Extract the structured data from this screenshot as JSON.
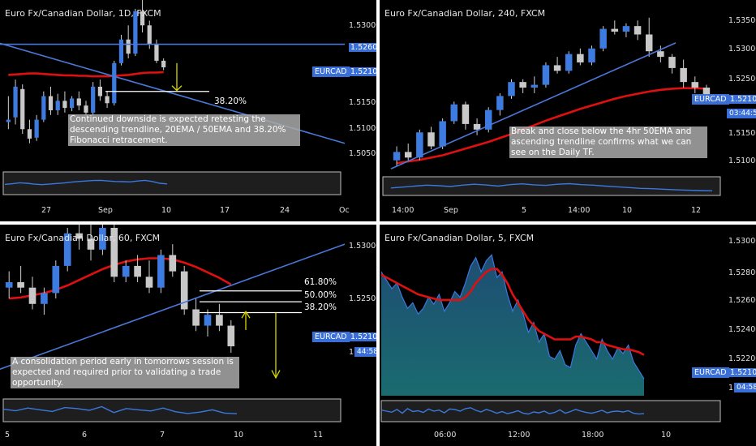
{
  "chart_data": [
    {
      "type": "candlestick",
      "title": "Euro Fx/Canadian Dollar, 1D, FXCM",
      "price_axis": [
        "1.53000",
        "1.52600",
        "1.52108",
        "1.51500",
        "1.51000",
        "1.50500"
      ],
      "highlight_price": "1.52600",
      "last_price": "1.52108",
      "symbol_tag": "EURCAD",
      "x_labels": [
        "27",
        "Sep",
        "10",
        "17",
        "24",
        "Oc"
      ],
      "fib_levels": [
        {
          "label": "38.20%",
          "price": 1.516
        }
      ],
      "annotation": "Continued downside is expected retesting the descending trendline, 20EMA / 50EMA and 38.20% Fibonacci retracement.",
      "ylim": [
        1.501,
        1.534
      ],
      "candles": [
        [
          1.5095,
          1.515,
          1.508,
          1.51
        ],
        [
          1.5105,
          1.5185,
          1.509,
          1.517
        ],
        [
          1.5165,
          1.5175,
          1.507,
          1.508
        ],
        [
          1.508,
          1.51,
          1.505,
          1.506
        ],
        [
          1.5062,
          1.511,
          1.5055,
          1.51
        ],
        [
          1.51,
          1.516,
          1.5095,
          1.515
        ],
        [
          1.515,
          1.517,
          1.511,
          1.512
        ],
        [
          1.512,
          1.5155,
          1.511,
          1.514
        ],
        [
          1.514,
          1.516,
          1.5115,
          1.5125
        ],
        [
          1.5125,
          1.515,
          1.5118,
          1.5145
        ],
        [
          1.5145,
          1.516,
          1.512,
          1.513
        ],
        [
          1.513,
          1.514,
          1.511,
          1.5115
        ],
        [
          1.5115,
          1.518,
          1.511,
          1.517
        ],
        [
          1.517,
          1.5185,
          1.514,
          1.515
        ],
        [
          1.515,
          1.516,
          1.5125,
          1.5135
        ],
        [
          1.5135,
          1.5225,
          1.513,
          1.522
        ],
        [
          1.522,
          1.528,
          1.5215,
          1.527
        ],
        [
          1.527,
          1.53,
          1.523,
          1.524
        ],
        [
          1.524,
          1.5335,
          1.5235,
          1.533
        ],
        [
          1.533,
          1.536,
          1.5285,
          1.53
        ],
        [
          1.53,
          1.531,
          1.525,
          1.526
        ],
        [
          1.526,
          1.527,
          1.522,
          1.5225
        ],
        [
          1.5225,
          1.523,
          1.5205,
          1.5211
        ]
      ],
      "ema50": [
        1.5195,
        1.5196,
        1.5197,
        1.5198,
        1.5198,
        1.5197,
        1.5196,
        1.5195,
        1.5194,
        1.5194,
        1.5193,
        1.5193,
        1.5192,
        1.5192,
        1.5192,
        1.5193,
        1.5194,
        1.5195,
        1.5197,
        1.5199,
        1.52,
        1.52,
        1.5201
      ],
      "oscillator": [
        0.45,
        0.48,
        0.52,
        0.5,
        0.46,
        0.44,
        0.46,
        0.49,
        0.51,
        0.55,
        0.58,
        0.6,
        0.62,
        0.63,
        0.6,
        0.58,
        0.57,
        0.56,
        0.6,
        0.63,
        0.58,
        0.5,
        0.47
      ]
    },
    {
      "type": "candlestick",
      "title": "Euro Fx/Canadian Dollar, 240, FXCM",
      "price_axis": [
        "1.53500",
        "1.53000",
        "1.52500",
        "1.52108",
        "1.51500",
        "1.51000"
      ],
      "last_price": "1.52108",
      "symbol_tag": "EURCAD",
      "countdown": "03:44:58",
      "x_labels": [
        "14:00",
        "Sep",
        "5",
        "14:00",
        "10",
        "12"
      ],
      "annotation": "Break and close below the 4hr 50EMA and ascending trendline confirms what we can see on the Daily TF.",
      "ylim": [
        1.507,
        1.537
      ],
      "candles": [
        [
          1.5095,
          1.512,
          1.5085,
          1.511
        ],
        [
          1.511,
          1.5125,
          1.5095,
          1.51
        ],
        [
          1.51,
          1.515,
          1.5095,
          1.5145
        ],
        [
          1.5145,
          1.5155,
          1.5115,
          1.512
        ],
        [
          1.512,
          1.517,
          1.5115,
          1.5165
        ],
        [
          1.5165,
          1.52,
          1.516,
          1.5195
        ],
        [
          1.5195,
          1.52,
          1.515,
          1.516
        ],
        [
          1.516,
          1.517,
          1.514,
          1.515
        ],
        [
          1.515,
          1.519,
          1.5145,
          1.5185
        ],
        [
          1.5185,
          1.5215,
          1.5175,
          1.521
        ],
        [
          1.521,
          1.524,
          1.5205,
          1.5235
        ],
        [
          1.5235,
          1.524,
          1.5215,
          1.5225
        ],
        [
          1.5225,
          1.5245,
          1.5215,
          1.523
        ],
        [
          1.523,
          1.527,
          1.5225,
          1.5265
        ],
        [
          1.5265,
          1.528,
          1.525,
          1.5255
        ],
        [
          1.5255,
          1.529,
          1.525,
          1.5285
        ],
        [
          1.5285,
          1.5295,
          1.5265,
          1.527
        ],
        [
          1.527,
          1.53,
          1.5265,
          1.5295
        ],
        [
          1.5295,
          1.5335,
          1.529,
          1.533
        ],
        [
          1.533,
          1.5345,
          1.532,
          1.5325
        ],
        [
          1.5325,
          1.534,
          1.5315,
          1.5335
        ],
        [
          1.5335,
          1.5345,
          1.531,
          1.532
        ],
        [
          1.532,
          1.535,
          1.528,
          1.529
        ],
        [
          1.529,
          1.53,
          1.527,
          1.528
        ],
        [
          1.528,
          1.5285,
          1.525,
          1.526
        ],
        [
          1.526,
          1.5275,
          1.5225,
          1.5235
        ],
        [
          1.5235,
          1.5245,
          1.5215,
          1.5225
        ],
        [
          1.5225,
          1.523,
          1.5195,
          1.5211
        ]
      ],
      "ema50": [
        1.509,
        1.5093,
        1.5096,
        1.51,
        1.5104,
        1.511,
        1.5116,
        1.5122,
        1.5128,
        1.5135,
        1.5142,
        1.515,
        1.5158,
        1.5166,
        1.5173,
        1.518,
        1.5187,
        1.5193,
        1.5199,
        1.5205,
        1.521,
        1.5214,
        1.5218,
        1.5221,
        1.5223,
        1.5224,
        1.5224,
        1.5223
      ],
      "oscillator": [
        0.4,
        0.45,
        0.5,
        0.55,
        0.52,
        0.48,
        0.55,
        0.6,
        0.56,
        0.5,
        0.58,
        0.62,
        0.57,
        0.54,
        0.6,
        0.63,
        0.58,
        0.55,
        0.5,
        0.46,
        0.42,
        0.38,
        0.36,
        0.33,
        0.3,
        0.28,
        0.26,
        0.25
      ]
    },
    {
      "type": "candlestick",
      "title": "Euro Fx/Canadian Dollar, 60, FXCM",
      "price_axis": [
        "1.53000",
        "1.52500",
        "1.52108"
      ],
      "last_price": "1.52108",
      "symbol_tag": "EURCAD",
      "countdown": "44:58",
      "countdown_prefix": "1",
      "x_labels": [
        "5",
        "6",
        "7",
        "10",
        "11"
      ],
      "fib_levels": [
        {
          "label": "61.80%",
          "price": 1.5262
        },
        {
          "label": "50.00%",
          "price": 1.5252
        },
        {
          "label": "38.20%",
          "price": 1.5242
        }
      ],
      "annotation": "A consolidation period early in tomorrows session is expected and required prior to validating a trade opportunity.",
      "ylim": [
        1.517,
        1.532
      ],
      "candles": [
        [
          1.5265,
          1.528,
          1.5255,
          1.527
        ],
        [
          1.527,
          1.5285,
          1.526,
          1.5265
        ],
        [
          1.5265,
          1.5275,
          1.5245,
          1.525
        ],
        [
          1.525,
          1.5265,
          1.524,
          1.526
        ],
        [
          1.526,
          1.529,
          1.5255,
          1.5285
        ],
        [
          1.5285,
          1.532,
          1.528,
          1.5315
        ],
        [
          1.5315,
          1.533,
          1.53,
          1.531
        ],
        [
          1.531,
          1.5325,
          1.529,
          1.53
        ],
        [
          1.53,
          1.533,
          1.5295,
          1.532
        ],
        [
          1.532,
          1.533,
          1.527,
          1.5275
        ],
        [
          1.5275,
          1.529,
          1.527,
          1.5285
        ],
        [
          1.5285,
          1.5295,
          1.527,
          1.5275
        ],
        [
          1.5275,
          1.529,
          1.526,
          1.5265
        ],
        [
          1.5265,
          1.53,
          1.526,
          1.5295
        ],
        [
          1.5295,
          1.5305,
          1.5275,
          1.528
        ],
        [
          1.528,
          1.5285,
          1.524,
          1.5245
        ],
        [
          1.5245,
          1.5255,
          1.5225,
          1.523
        ],
        [
          1.523,
          1.5245,
          1.522,
          1.524
        ],
        [
          1.524,
          1.525,
          1.5225,
          1.523
        ],
        [
          1.523,
          1.5235,
          1.5205,
          1.5211
        ]
      ],
      "ema50": [
        1.5255,
        1.5256,
        1.5258,
        1.526,
        1.5263,
        1.5267,
        1.5272,
        1.5277,
        1.5282,
        1.5286,
        1.5289,
        1.5291,
        1.5292,
        1.5292,
        1.5291,
        1.5288,
        1.5284,
        1.5279,
        1.5274,
        1.5268
      ],
      "oscillator": [
        0.55,
        0.48,
        0.6,
        0.52,
        0.45,
        0.62,
        0.58,
        0.5,
        0.66,
        0.4,
        0.58,
        0.52,
        0.47,
        0.6,
        0.44,
        0.36,
        0.42,
        0.52,
        0.38,
        0.35
      ]
    },
    {
      "type": "area",
      "title": "Euro Fx/Canadian Dollar, 5, FXCM",
      "price_axis": [
        "1.53000",
        "1.52800",
        "1.52600",
        "1.52400",
        "1.52200",
        "1.52108"
      ],
      "last_price": "1.52108",
      "symbol_tag": "EURCAD",
      "countdown": "04:58",
      "countdown_prefix": "1",
      "x_labels": [
        "06:00",
        "12:00",
        "18:00",
        "10"
      ],
      "ylim": [
        1.52,
        1.531
      ],
      "values": [
        1.5288,
        1.5282,
        1.5276,
        1.528,
        1.527,
        1.5262,
        1.5266,
        1.5258,
        1.5262,
        1.527,
        1.5265,
        1.5272,
        1.526,
        1.5266,
        1.5274,
        1.527,
        1.528,
        1.5292,
        1.5298,
        1.5288,
        1.5296,
        1.53,
        1.5284,
        1.5288,
        1.5272,
        1.526,
        1.5268,
        1.5258,
        1.5245,
        1.5252,
        1.5238,
        1.5244,
        1.5228,
        1.5226,
        1.5232,
        1.5222,
        1.522,
        1.5236,
        1.5244,
        1.5238,
        1.5232,
        1.5226,
        1.524,
        1.5232,
        1.5226,
        1.5234,
        1.523,
        1.5236,
        1.5224,
        1.5218,
        1.5212
      ],
      "ema50": [
        1.5286,
        1.5284,
        1.5282,
        1.528,
        1.5278,
        1.5276,
        1.5274,
        1.5272,
        1.5271,
        1.527,
        1.5269,
        1.5268,
        1.5268,
        1.5268,
        1.5268,
        1.5268,
        1.527,
        1.5274,
        1.528,
        1.5284,
        1.5288,
        1.529,
        1.529,
        1.5286,
        1.528,
        1.5272,
        1.5266,
        1.526,
        1.5254,
        1.525,
        1.5246,
        1.5244,
        1.5242,
        1.524,
        1.524,
        1.524,
        1.524,
        1.5242,
        1.5242,
        1.5241,
        1.524,
        1.5238,
        1.5238,
        1.5236,
        1.5235,
        1.5234,
        1.5233,
        1.5233,
        1.5232,
        1.5231,
        1.5229
      ],
      "oscillator": [
        0.55,
        0.5,
        0.45,
        0.58,
        0.4,
        0.62,
        0.48,
        0.52,
        0.44,
        0.6,
        0.5,
        0.55,
        0.42,
        0.6,
        0.58,
        0.5,
        0.62,
        0.66,
        0.54,
        0.46,
        0.58,
        0.5,
        0.4,
        0.48,
        0.38,
        0.44,
        0.52,
        0.4,
        0.36,
        0.46,
        0.42,
        0.5,
        0.38,
        0.44,
        0.56,
        0.4,
        0.48,
        0.58,
        0.5,
        0.44,
        0.4,
        0.46,
        0.54,
        0.42,
        0.48,
        0.5,
        0.46,
        0.52,
        0.4,
        0.36,
        0.38
      ]
    }
  ],
  "colors": {
    "up_candle": "#3d7be0",
    "down_candle": "#c8c8c8",
    "ema": "#e01010",
    "trendline": "#4a78d8",
    "fib": "#ffffff",
    "arrow": "#d8d800",
    "area_fill": "#1a6b6f",
    "area_line": "#3a78e0",
    "tag_bg": "#3a6fd8"
  }
}
